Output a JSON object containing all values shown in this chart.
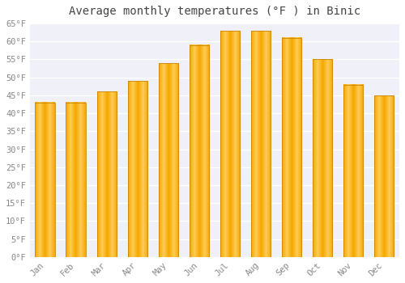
{
  "title": "Average monthly temperatures (°F ) in Binic",
  "months": [
    "Jan",
    "Feb",
    "Mar",
    "Apr",
    "May",
    "Jun",
    "Jul",
    "Aug",
    "Sep",
    "Oct",
    "Nov",
    "Dec"
  ],
  "values": [
    43,
    43,
    46,
    49,
    54,
    59,
    63,
    63,
    61,
    55,
    48,
    45
  ],
  "bar_color_left": "#F5A800",
  "bar_color_center": "#FFCC55",
  "bar_color_right": "#F5A800",
  "bar_edge_color": "#C8860A",
  "ylim": [
    0,
    65
  ],
  "yticks": [
    0,
    5,
    10,
    15,
    20,
    25,
    30,
    35,
    40,
    45,
    50,
    55,
    60,
    65
  ],
  "ytick_labels": [
    "0°F",
    "5°F",
    "10°F",
    "15°F",
    "20°F",
    "25°F",
    "30°F",
    "35°F",
    "40°F",
    "45°F",
    "50°F",
    "55°F",
    "60°F",
    "65°F"
  ],
  "background_color": "#ffffff",
  "plot_bg_color": "#f0f0f8",
  "grid_color": "#ffffff",
  "tick_label_color": "#888888",
  "title_color": "#444444",
  "title_fontsize": 10,
  "tick_fontsize": 7.5,
  "font_family": "monospace"
}
